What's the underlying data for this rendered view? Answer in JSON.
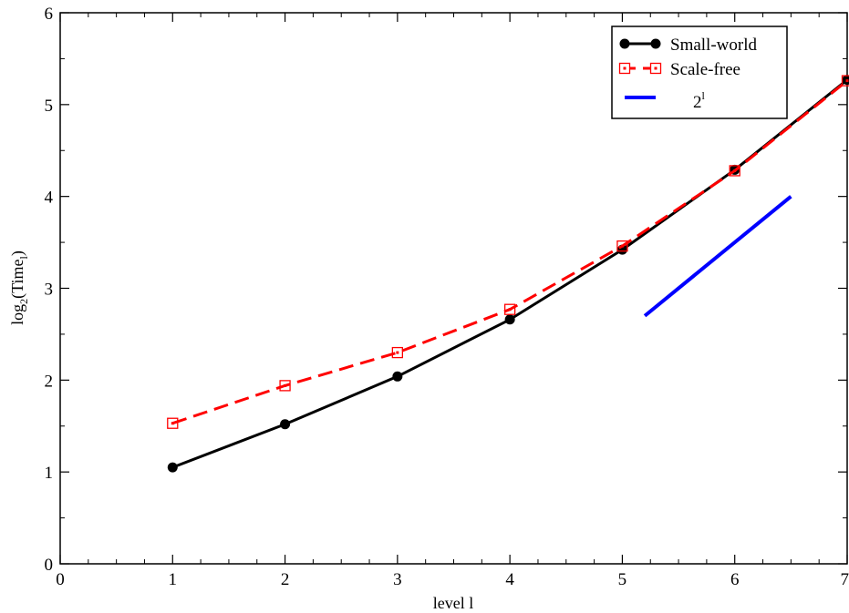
{
  "chart_data": {
    "type": "line",
    "xlabel": "level l",
    "ylabel": {
      "base": "log",
      "sub": "2",
      "mid": "(Time",
      "sub2": "l",
      "end": ")"
    },
    "xlim": [
      0,
      7
    ],
    "ylim": [
      0,
      6
    ],
    "x_ticks": [
      0,
      1,
      2,
      3,
      4,
      5,
      6,
      7
    ],
    "y_ticks": [
      0,
      1,
      2,
      3,
      4,
      5,
      6
    ],
    "grid": false,
    "legend_position": "top-right",
    "series": [
      {
        "name": "Small-world",
        "color": "#000000",
        "line": "solid",
        "marker": "filled-circle",
        "points": [
          [
            1,
            1.05
          ],
          [
            2,
            1.52
          ],
          [
            3,
            2.04
          ],
          [
            4,
            2.66
          ],
          [
            5,
            3.42
          ],
          [
            6,
            4.29
          ],
          [
            7,
            5.27
          ]
        ]
      },
      {
        "name": "Scale-free",
        "color": "#ff0000",
        "line": "dashed",
        "marker": "open-square",
        "points": [
          [
            1,
            1.53
          ],
          [
            2,
            1.94
          ],
          [
            3,
            2.3
          ],
          [
            4,
            2.77
          ],
          [
            5,
            3.46
          ],
          [
            6,
            4.28
          ],
          [
            7,
            5.26
          ]
        ]
      },
      {
        "name": "2",
        "name_superscript": "l",
        "color": "#0000ff",
        "line": "solid",
        "marker": "none",
        "points": [
          [
            5.2,
            2.7
          ],
          [
            6.5,
            4.0
          ]
        ]
      }
    ]
  }
}
